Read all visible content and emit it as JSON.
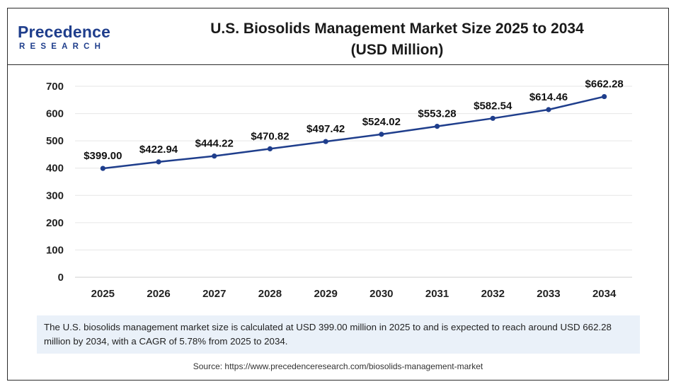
{
  "header": {
    "logo_name": "Precedence",
    "logo_sub": "RESEARCH",
    "title_line1": "U.S. Biosolids Management Market Size 2025 to 2034",
    "title_line2": "(USD Million)"
  },
  "chart_data": {
    "type": "line",
    "title": "U.S. Biosolids Management Market Size 2025 to 2034 (USD Million)",
    "categories": [
      "2025",
      "2026",
      "2027",
      "2028",
      "2029",
      "2030",
      "2031",
      "2032",
      "2033",
      "2034"
    ],
    "series": [
      {
        "values": [
          399.0,
          422.94,
          444.22,
          470.82,
          497.42,
          524.02,
          553.28,
          582.54,
          614.46,
          662.28
        ],
        "labels": [
          "$399.00",
          "$422.94",
          "$444.22",
          "$470.82",
          "$497.42",
          "$524.02",
          "$553.28",
          "$582.54",
          "$614.46",
          "$662.28"
        ],
        "color": "#1f3e8c"
      }
    ],
    "y_ticks": [
      "0",
      "100",
      "200",
      "300",
      "400",
      "500",
      "600",
      "700"
    ],
    "ylim": [
      0,
      700
    ],
    "grid": true,
    "legend": "none"
  },
  "summary": "The U.S. biosolids management market size is calculated at USD 399.00 million in 2025 to and is expected to reach around USD 662.28 million by 2034, with a CAGR of 5.78% from 2025 to 2034.",
  "source": "Source: https://www.precedenceresearch.com/biosolids-management-market",
  "colors": {
    "line": "#1f3e8c",
    "grid": "#e6e6e6",
    "summary_bg": "#eaf1f9",
    "brand": "#1f3e8c"
  }
}
